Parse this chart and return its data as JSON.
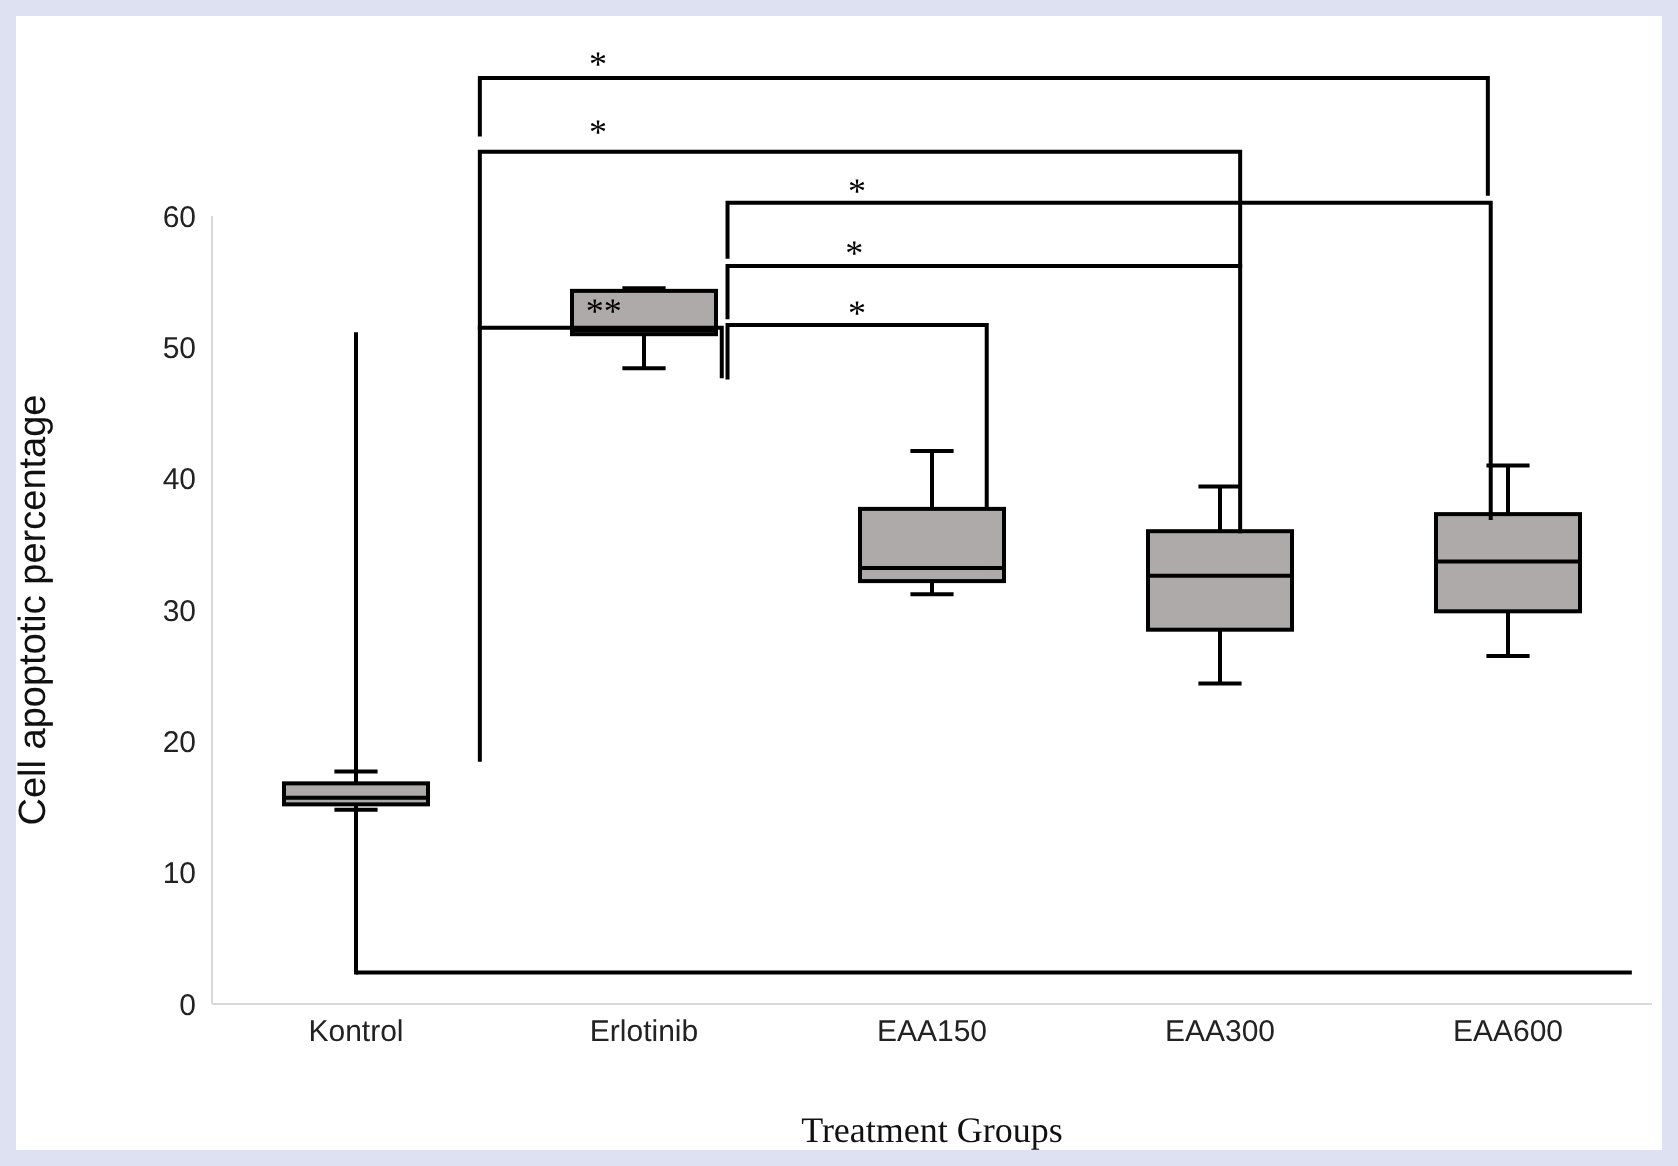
{
  "chart_data": {
    "type": "box",
    "categories": [
      "Kontrol",
      "Erlotinib",
      "EAA150",
      "EAA300",
      "EAA600"
    ],
    "series": [
      {
        "color": "#aeaaaa",
        "boxes": [
          {
            "low": 14.8,
            "q1": 15.2,
            "median": 15.7,
            "q3": 16.8,
            "high": 17.7
          },
          {
            "low": 48.4,
            "q1": 51.0,
            "median": 51.3,
            "q3": 54.3,
            "high": 54.5
          },
          {
            "low": 31.2,
            "q1": 32.2,
            "median": 33.2,
            "q3": 37.7,
            "high": 42.1
          },
          {
            "low": 24.4,
            "q1": 28.5,
            "median": 32.6,
            "q3": 36.0,
            "high": 39.4
          },
          {
            "low": 26.5,
            "q1": 29.9,
            "median": 33.7,
            "q3": 37.3,
            "high": 41.0
          }
        ]
      }
    ],
    "xlabel": "Treatment Groups",
    "ylabel": "Cell apoptotic percentage",
    "ylim": [
      0,
      60
    ],
    "yticks": [
      0,
      10,
      20,
      30,
      40,
      50,
      60
    ],
    "ref_lines": [
      {
        "axis": "y",
        "value": 2.4,
        "color": "#000000"
      }
    ],
    "annotations": [
      "*",
      "*",
      "*",
      "*",
      "*",
      "**"
    ]
  }
}
